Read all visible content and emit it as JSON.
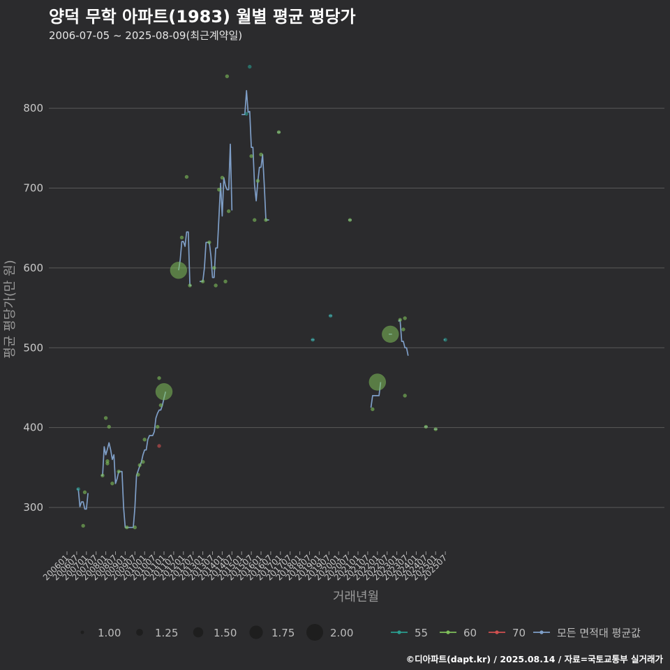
{
  "header": {
    "title": "양덕 무학 아파트(1983) 월별 평균 평당가",
    "subtitle": "2006-07-05 ~ 2025-08-09(최근계약일)"
  },
  "caption": "©디아파트(dapt.kr) / 2025.08.14 / 자료=국토교통부 실거래가",
  "colors": {
    "background": "#2b2b2d",
    "grid": "#5a5a5a",
    "s55": "#2a9d8f",
    "s60": "#7fbf5a",
    "s70": "#d05050",
    "avg": "#7f9fc8"
  },
  "chart_data": {
    "type": "line",
    "title": "양덕 무학 아파트(1983) 월별 평균 평당가",
    "xlabel": "거래년월",
    "ylabel": "평균 평당가(만 원)",
    "x_tick_labels": [
      "200601",
      "200607",
      "200701",
      "200707",
      "200801",
      "200807",
      "200901",
      "200907",
      "201001",
      "201007",
      "201101",
      "201107",
      "201201",
      "201207",
      "201301",
      "201307",
      "201401",
      "201407",
      "201501",
      "201507",
      "201601",
      "201607",
      "201701",
      "201707",
      "201801",
      "201807",
      "201901",
      "201907",
      "202001",
      "202007",
      "202101",
      "202107",
      "202201",
      "202207",
      "202301",
      "202307",
      "202401",
      "202407",
      "202501",
      "202507"
    ],
    "y_ticks": [
      300,
      400,
      500,
      600,
      700,
      800
    ],
    "ylim": [
      245,
      870
    ],
    "grid": true,
    "size_legend": {
      "labels": [
        "1.00",
        "1.25",
        "1.50",
        "1.75",
        "2.00"
      ],
      "values": [
        1.0,
        1.25,
        1.5,
        1.75,
        2.0
      ]
    },
    "color_legend": [
      {
        "key": "s55",
        "label": "55"
      },
      {
        "key": "s60",
        "label": "60"
      },
      {
        "key": "s70",
        "label": "70"
      },
      {
        "key": "avg",
        "label": "모든 면적대 평균값"
      }
    ],
    "avg_segments": [
      [
        [
          "2006-07",
          323
        ],
        [
          "2006-08",
          323
        ],
        [
          "2006-09",
          301
        ],
        [
          "2006-10",
          307
        ],
        [
          "2006-11",
          307
        ],
        [
          "2006-12",
          298
        ],
        [
          "2007-01",
          298
        ],
        [
          "2007-02",
          318
        ]
      ],
      [
        [
          "2007-10",
          340
        ],
        [
          "2007-11",
          340
        ],
        [
          "2007-12",
          376
        ],
        [
          "2008-01",
          366
        ],
        [
          "2008-02",
          373
        ],
        [
          "2008-03",
          381
        ],
        [
          "2008-04",
          372
        ],
        [
          "2008-05",
          360
        ],
        [
          "2008-06",
          366
        ],
        [
          "2008-07",
          330
        ],
        [
          "2008-08",
          336
        ],
        [
          "2008-09",
          345
        ],
        [
          "2008-10",
          345
        ],
        [
          "2008-11",
          345
        ],
        [
          "2008-12",
          300
        ],
        [
          "2009-01",
          275
        ],
        [
          "2009-02",
          275
        ],
        [
          "2009-03",
          275
        ],
        [
          "2009-04",
          275
        ],
        [
          "2009-05",
          275
        ],
        [
          "2009-06",
          275
        ],
        [
          "2009-07",
          300
        ],
        [
          "2009-08",
          340
        ],
        [
          "2009-09",
          346
        ],
        [
          "2009-10",
          352
        ],
        [
          "2009-11",
          357
        ],
        [
          "2009-12",
          366
        ],
        [
          "2010-01",
          372
        ],
        [
          "2010-02",
          372
        ],
        [
          "2010-03",
          385
        ],
        [
          "2010-04",
          390
        ],
        [
          "2010-05",
          390
        ],
        [
          "2010-06",
          390
        ],
        [
          "2010-07",
          395
        ],
        [
          "2010-08",
          412
        ],
        [
          "2010-09",
          418
        ],
        [
          "2010-10",
          422
        ],
        [
          "2010-11",
          422
        ],
        [
          "2010-12",
          428
        ],
        [
          "2011-01",
          437
        ],
        [
          "2011-02",
          445
        ]
      ],
      [
        [
          "2011-10",
          597
        ],
        [
          "2011-11",
          610
        ],
        [
          "2011-12",
          633
        ],
        [
          "2012-01",
          633
        ],
        [
          "2012-02",
          627
        ],
        [
          "2012-03",
          645
        ],
        [
          "2012-04",
          645
        ],
        [
          "2012-05",
          578
        ],
        [
          "2012-06",
          578
        ]
      ],
      [
        [
          "2012-11",
          583
        ],
        [
          "2012-12",
          583
        ],
        [
          "2013-01",
          583
        ],
        [
          "2013-02",
          600
        ],
        [
          "2013-03",
          632
        ],
        [
          "2013-04",
          632
        ],
        [
          "2013-05",
          632
        ],
        [
          "2013-06",
          615
        ],
        [
          "2013-07",
          588
        ],
        [
          "2013-08",
          588
        ],
        [
          "2013-09",
          625
        ],
        [
          "2013-10",
          625
        ],
        [
          "2013-11",
          665
        ],
        [
          "2013-12",
          706
        ],
        [
          "2014-01",
          665
        ],
        [
          "2014-02",
          713
        ],
        [
          "2014-03",
          703
        ],
        [
          "2014-04",
          698
        ],
        [
          "2014-05",
          698
        ],
        [
          "2014-06",
          755
        ],
        [
          "2014-07",
          672
        ]
      ],
      [
        [
          "2015-01",
          792
        ],
        [
          "2015-02",
          792
        ],
        [
          "2015-03",
          792
        ],
        [
          "2015-04",
          822
        ],
        [
          "2015-05",
          795
        ],
        [
          "2015-06",
          796
        ],
        [
          "2015-07",
          751
        ],
        [
          "2015-08",
          751
        ],
        [
          "2015-09",
          704
        ],
        [
          "2015-10",
          684
        ],
        [
          "2015-11",
          708
        ],
        [
          "2015-12",
          726
        ],
        [
          "2016-01",
          726
        ],
        [
          "2016-02",
          742
        ],
        [
          "2016-03",
          705
        ],
        [
          "2016-04",
          660
        ],
        [
          "2016-05",
          660
        ],
        [
          "2016-06",
          660
        ]
      ],
      [
        [
          "2016-11",
          770
        ],
        [
          "2016-12",
          770
        ],
        [
          "2017-01",
          770
        ]
      ],
      [
        [
          "2018-08",
          510
        ],
        [
          "2018-09",
          510
        ],
        [
          "2018-10",
          510
        ]
      ],
      [
        [
          "2019-07",
          540
        ],
        [
          "2019-08",
          540
        ],
        [
          "2019-09",
          540
        ]
      ],
      [
        [
          "2020-07",
          660
        ],
        [
          "2020-08",
          660
        ],
        [
          "2020-09",
          660
        ]
      ],
      [
        [
          "2021-09",
          425
        ],
        [
          "2021-10",
          440
        ],
        [
          "2021-11",
          440
        ],
        [
          "2021-12",
          440
        ],
        [
          "2022-01",
          440
        ],
        [
          "2022-02",
          440
        ],
        [
          "2022-03",
          457
        ]
      ],
      [
        [
          "2022-08",
          517
        ],
        [
          "2022-09",
          517
        ],
        [
          "2022-10",
          517
        ]
      ],
      [
        [
          "2023-02",
          533
        ],
        [
          "2023-03",
          535
        ],
        [
          "2023-04",
          508
        ],
        [
          "2023-05",
          508
        ],
        [
          "2023-06",
          500
        ],
        [
          "2023-07",
          500
        ],
        [
          "2023-08",
          490
        ]
      ],
      [
        [
          "2024-06",
          401
        ],
        [
          "2024-07",
          401
        ],
        [
          "2024-08",
          401
        ]
      ],
      [
        [
          "2024-12",
          398
        ],
        [
          "2025-01",
          398
        ],
        [
          "2025-02",
          398
        ]
      ],
      [
        [
          "2025-06",
          510
        ],
        [
          "2025-07",
          510
        ]
      ]
    ],
    "points": [
      {
        "x": "2006-08",
        "y": 323,
        "s": 1.0,
        "a": "s55"
      },
      {
        "x": "2006-11",
        "y": 277,
        "s": 1.0,
        "a": "s60"
      },
      {
        "x": "2006-12",
        "y": 319,
        "s": 1.0,
        "a": "s60"
      },
      {
        "x": "2007-11",
        "y": 340,
        "s": 1.0,
        "a": "s60"
      },
      {
        "x": "2008-01",
        "y": 412,
        "s": 1.0,
        "a": "s60"
      },
      {
        "x": "2008-02",
        "y": 358,
        "s": 1.0,
        "a": "s60"
      },
      {
        "x": "2008-02",
        "y": 355,
        "s": 1.0,
        "a": "s60"
      },
      {
        "x": "2008-03",
        "y": 401,
        "s": 1.0,
        "a": "s60"
      },
      {
        "x": "2008-05",
        "y": 330,
        "s": 1.0,
        "a": "s60"
      },
      {
        "x": "2008-09",
        "y": 345,
        "s": 1.0,
        "a": "s60"
      },
      {
        "x": "2009-02",
        "y": 275,
        "s": 1.0,
        "a": "s60"
      },
      {
        "x": "2009-07",
        "y": 275,
        "s": 1.0,
        "a": "s60"
      },
      {
        "x": "2009-09",
        "y": 341,
        "s": 1.0,
        "a": "s60"
      },
      {
        "x": "2009-10",
        "y": 353,
        "s": 1.0,
        "a": "s60"
      },
      {
        "x": "2009-12",
        "y": 357,
        "s": 1.0,
        "a": "s60"
      },
      {
        "x": "2010-01",
        "y": 385,
        "s": 1.0,
        "a": "s60"
      },
      {
        "x": "2010-09",
        "y": 401,
        "s": 1.0,
        "a": "s60"
      },
      {
        "x": "2010-10",
        "y": 462,
        "s": 1.0,
        "a": "s60"
      },
      {
        "x": "2010-10",
        "y": 377,
        "s": 1.0,
        "a": "s70"
      },
      {
        "x": "2010-11",
        "y": 428,
        "s": 1.0,
        "a": "s60"
      },
      {
        "x": "2011-01",
        "y": 445,
        "s": 2.0,
        "a": "s60"
      },
      {
        "x": "2011-10",
        "y": 597,
        "s": 2.0,
        "a": "s60"
      },
      {
        "x": "2011-12",
        "y": 638,
        "s": 1.0,
        "a": "s60"
      },
      {
        "x": "2012-03",
        "y": 714,
        "s": 1.0,
        "a": "s60"
      },
      {
        "x": "2012-05",
        "y": 578,
        "s": 1.0,
        "a": "s60"
      },
      {
        "x": "2013-01",
        "y": 583,
        "s": 1.0,
        "a": "s60"
      },
      {
        "x": "2013-05",
        "y": 632,
        "s": 1.0,
        "a": "s60"
      },
      {
        "x": "2013-08",
        "y": 600,
        "s": 1.0,
        "a": "s60"
      },
      {
        "x": "2013-09",
        "y": 578,
        "s": 1.0,
        "a": "s60"
      },
      {
        "x": "2013-11",
        "y": 698,
        "s": 1.0,
        "a": "s60"
      },
      {
        "x": "2014-01",
        "y": 713,
        "s": 1.0,
        "a": "s60"
      },
      {
        "x": "2014-03",
        "y": 583,
        "s": 1.0,
        "a": "s60"
      },
      {
        "x": "2014-04",
        "y": 840,
        "s": 1.0,
        "a": "s60"
      },
      {
        "x": "2014-05",
        "y": 671,
        "s": 1.0,
        "a": "s60"
      },
      {
        "x": "2015-04",
        "y": 793,
        "s": 1.0,
        "a": "s55"
      },
      {
        "x": "2015-06",
        "y": 852,
        "s": 1.0,
        "a": "s55"
      },
      {
        "x": "2015-07",
        "y": 740,
        "s": 1.0,
        "a": "s60"
      },
      {
        "x": "2015-09",
        "y": 660,
        "s": 1.0,
        "a": "s60"
      },
      {
        "x": "2015-11",
        "y": 709,
        "s": 1.0,
        "a": "s60"
      },
      {
        "x": "2016-01",
        "y": 742,
        "s": 1.0,
        "a": "s60"
      },
      {
        "x": "2016-04",
        "y": 660,
        "s": 1.0,
        "a": "s60"
      },
      {
        "x": "2016-12",
        "y": 770,
        "s": 1.0,
        "a": "s60"
      },
      {
        "x": "2018-09",
        "y": 510,
        "s": 1.0,
        "a": "s55"
      },
      {
        "x": "2019-08",
        "y": 540,
        "s": 1.0,
        "a": "s55"
      },
      {
        "x": "2020-08",
        "y": 660,
        "s": 1.0,
        "a": "s60"
      },
      {
        "x": "2021-10",
        "y": 423,
        "s": 1.0,
        "a": "s60"
      },
      {
        "x": "2022-01",
        "y": 457,
        "s": 2.0,
        "a": "s60"
      },
      {
        "x": "2022-09",
        "y": 517,
        "s": 2.0,
        "a": "s60"
      },
      {
        "x": "2023-03",
        "y": 535,
        "s": 1.0,
        "a": "s60"
      },
      {
        "x": "2023-05",
        "y": 523,
        "s": 1.0,
        "a": "s60"
      },
      {
        "x": "2023-06",
        "y": 537,
        "s": 1.0,
        "a": "s60"
      },
      {
        "x": "2023-06",
        "y": 440,
        "s": 1.0,
        "a": "s60"
      },
      {
        "x": "2024-07",
        "y": 401,
        "s": 1.0,
        "a": "s60"
      },
      {
        "x": "2025-01",
        "y": 398,
        "s": 1.0,
        "a": "s60"
      },
      {
        "x": "2025-07",
        "y": 510,
        "s": 1.0,
        "a": "s55"
      }
    ]
  }
}
